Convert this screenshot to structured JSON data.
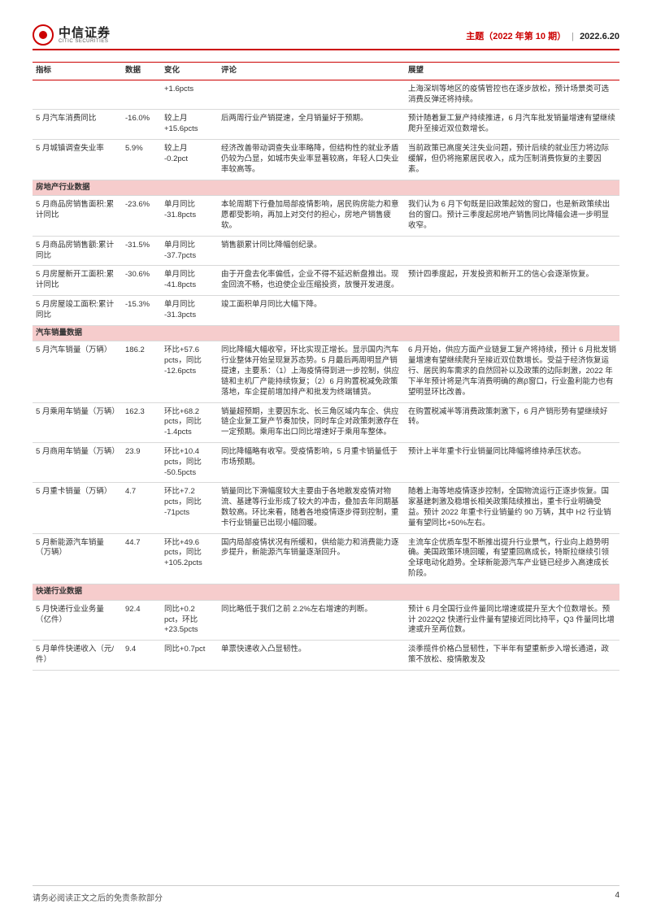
{
  "header": {
    "logo_cn": "中信证券",
    "logo_en": "CITIC SECURITIES",
    "title_red": "主题（2022 年第 10 期）",
    "date": "2022.6.20"
  },
  "columns": {
    "indicator": "指标",
    "data": "数据",
    "change": "变化",
    "comment": "评论",
    "outlook": "展望"
  },
  "colors": {
    "accent": "#c00000",
    "section_bg": "#f6cccc",
    "border": "#d9d9d9",
    "text": "#333333"
  },
  "rows": [
    {
      "indicator": "",
      "data": "",
      "change": "+1.6pcts",
      "comment": "",
      "outlook": "上海深圳等地区的疫情管控也在逐步放松，预计场景类可选消费反弹还将持续。"
    },
    {
      "indicator": "5 月汽车消费同比",
      "data": "-16.0%",
      "change": "较上月\n+15.6pcts",
      "comment": "后两周行业产销提速，全月销量好于预期。",
      "outlook": "预计随着复工复产持续推进，6 月汽车批发销量增速有望继续爬升至接近双位数增长。"
    },
    {
      "indicator": "5 月城镇调查失业率",
      "data": "5.9%",
      "change": "较上月\n-0.2pct",
      "comment": "经济改善带动调查失业率略降，但结构性的就业矛盾仍较为凸显，如城市失业率显著较高，年轻人口失业率较高等。",
      "outlook": "当前政策已高度关注失业问题，预计后续的就业压力将边际缓解，但仍将拖累居民收入，成为压制消费恢复的主要因素。"
    },
    {
      "section": "房地产行业数据"
    },
    {
      "indicator": "5 月商品房销售面积:累计同比",
      "data": "-23.6%",
      "change": "单月同比\n-31.8pcts",
      "comment": "本轮周期下行叠加局部疫情影响，居民购房能力和意愿都受影响，再加上对交付的担心，房地产销售疲软。",
      "outlook": "我们认为 6 月下旬既是旧政策起效的窗口，也是新政策续出台的窗口。预计三季度起房地产销售同比降幅会进一步明显收窄。"
    },
    {
      "indicator": "5 月商品房销售额:累计同比",
      "data": "-31.5%",
      "change": "单月同比\n-37.7pcts",
      "comment": "销售额累计同比降幅创纪录。",
      "outlook": ""
    },
    {
      "indicator": "5 月房屋新开工面积:累计同比",
      "data": "-30.6%",
      "change": "单月同比\n-41.8pcts",
      "comment": "由于开盘去化率偏低，企业不得不延迟新盘推出。现金回流不畅，也迫使企业压缩投资，放慢开发进度。",
      "outlook": "预计四季度起，开发投资和新开工的信心会逐渐恢复。"
    },
    {
      "indicator": "5 月房屋竣工面积:累计同比",
      "data": "-15.3%",
      "change": "单月同比\n-31.3pcts",
      "comment": "竣工面积单月同比大幅下降。",
      "outlook": ""
    },
    {
      "section": "汽车销量数据"
    },
    {
      "indicator": "5 月汽车销量（万辆）",
      "data": "186.2",
      "change": "环比+57.6\npcts，同比\n-12.6pcts",
      "comment": "同比降幅大幅收窄，环比实现正增长。显示国内汽车行业整体开始呈现复苏态势。5 月最后两周明显产销提速，主要系：（1）上海疫情得到进一步控制，供应链和主机厂产能持续恢复；（2）6 月购置税减免政策落地，车企提前增加排产和批发为终端铺货。",
      "outlook": "6 月开始，供应方面产业链复工复产将持续，预计 6 月批发销量增速有望继续爬升至接近双位数增长。受益于经济恢复运行、居民购车需求的自然回补以及政策的边际刺激，2022 年下半年预计将是汽车消费明确的高β窗口，行业盈利能力也有望明显环比改善。"
    },
    {
      "indicator": "5 月乘用车销量（万辆）",
      "data": "162.3",
      "change": "环比+68.2\npcts，同比\n-1.4pcts",
      "comment": "销量超预期，主要因东北、长三角区域内车企、供应链企业复工复产节奏加快，同时车企对政策刺激存在一定预期。乘用车出口同比增速好于乘用车整体。",
      "outlook": "在购置税减半等消费政策刺激下，6 月产销形势有望继续好转。"
    },
    {
      "indicator": "5 月商用车销量（万辆）",
      "data": "23.9",
      "change": "环比+10.4\npcts，同比\n-50.5pcts",
      "comment": "同比降幅略有收窄。受疫情影响，5 月重卡销量低于市场预期。",
      "outlook": "预计上半年重卡行业销量同比降幅将维持承压状态。"
    },
    {
      "indicator": "5 月重卡销量（万辆）",
      "data": "4.7",
      "change": "环比+7.2\npcts，同比\n-71pcts",
      "comment": "销量同比下滑幅度较大主要由于各地散发疫情对物流、基建等行业形成了较大的冲击，叠加去年同期基数较高。环比来看，随着各地疫情逐步得到控制，重卡行业销量已出现小幅回暖。",
      "outlook": "随着上海等地疫情逐步控制，全国物流运行正逐步恢复。国家基建刺激及稳增长相关政策陆续推出，重卡行业明确受益。预计 2022 年重卡行业销量约 90 万辆，其中 H2 行业销量有望同比+50%左右。"
    },
    {
      "indicator": "5 月新能源汽车销量（万辆）",
      "data": "44.7",
      "change": "环比+49.6\npcts，同比\n+105.2pcts",
      "comment": "国内局部疫情状况有所缓和，供给能力和消费能力逐步提升，新能源汽车销量逐渐回升。",
      "outlook": "主流车企优质车型不断推出提升行业景气，行业向上趋势明确。美国政策环境回暖，有望重回高成长，特斯拉继续引领全球电动化趋势。全球新能源汽车产业链已经步入高速成长阶段。"
    },
    {
      "section": "快递行业数据"
    },
    {
      "indicator": "5 月快递行业业务量（亿件）",
      "data": "92.4",
      "change": "同比+0.2\npct，环比\n+23.5pcts",
      "comment": "同比略低于我们之前 2.2%左右增速的判断。",
      "outlook": "预计 6 月全国行业件量同比增速或提升至大个位数增长。预计 2022Q2 快递行业件量有望接近同比持平，Q3 件量同比增速或升至两位数。"
    },
    {
      "indicator": "5 月单件快递收入（元/件）",
      "data": "9.4",
      "change": "同比+0.7pct",
      "comment": "单票快递收入凸显韧性。",
      "outlook": "淡季揽件价格凸显韧性，下半年有望重新步入增长通道，政策不放松、疫情散发及"
    }
  ],
  "footer": {
    "disclaimer": "请务必阅读正文之后的免责条款部分",
    "page": "4"
  }
}
